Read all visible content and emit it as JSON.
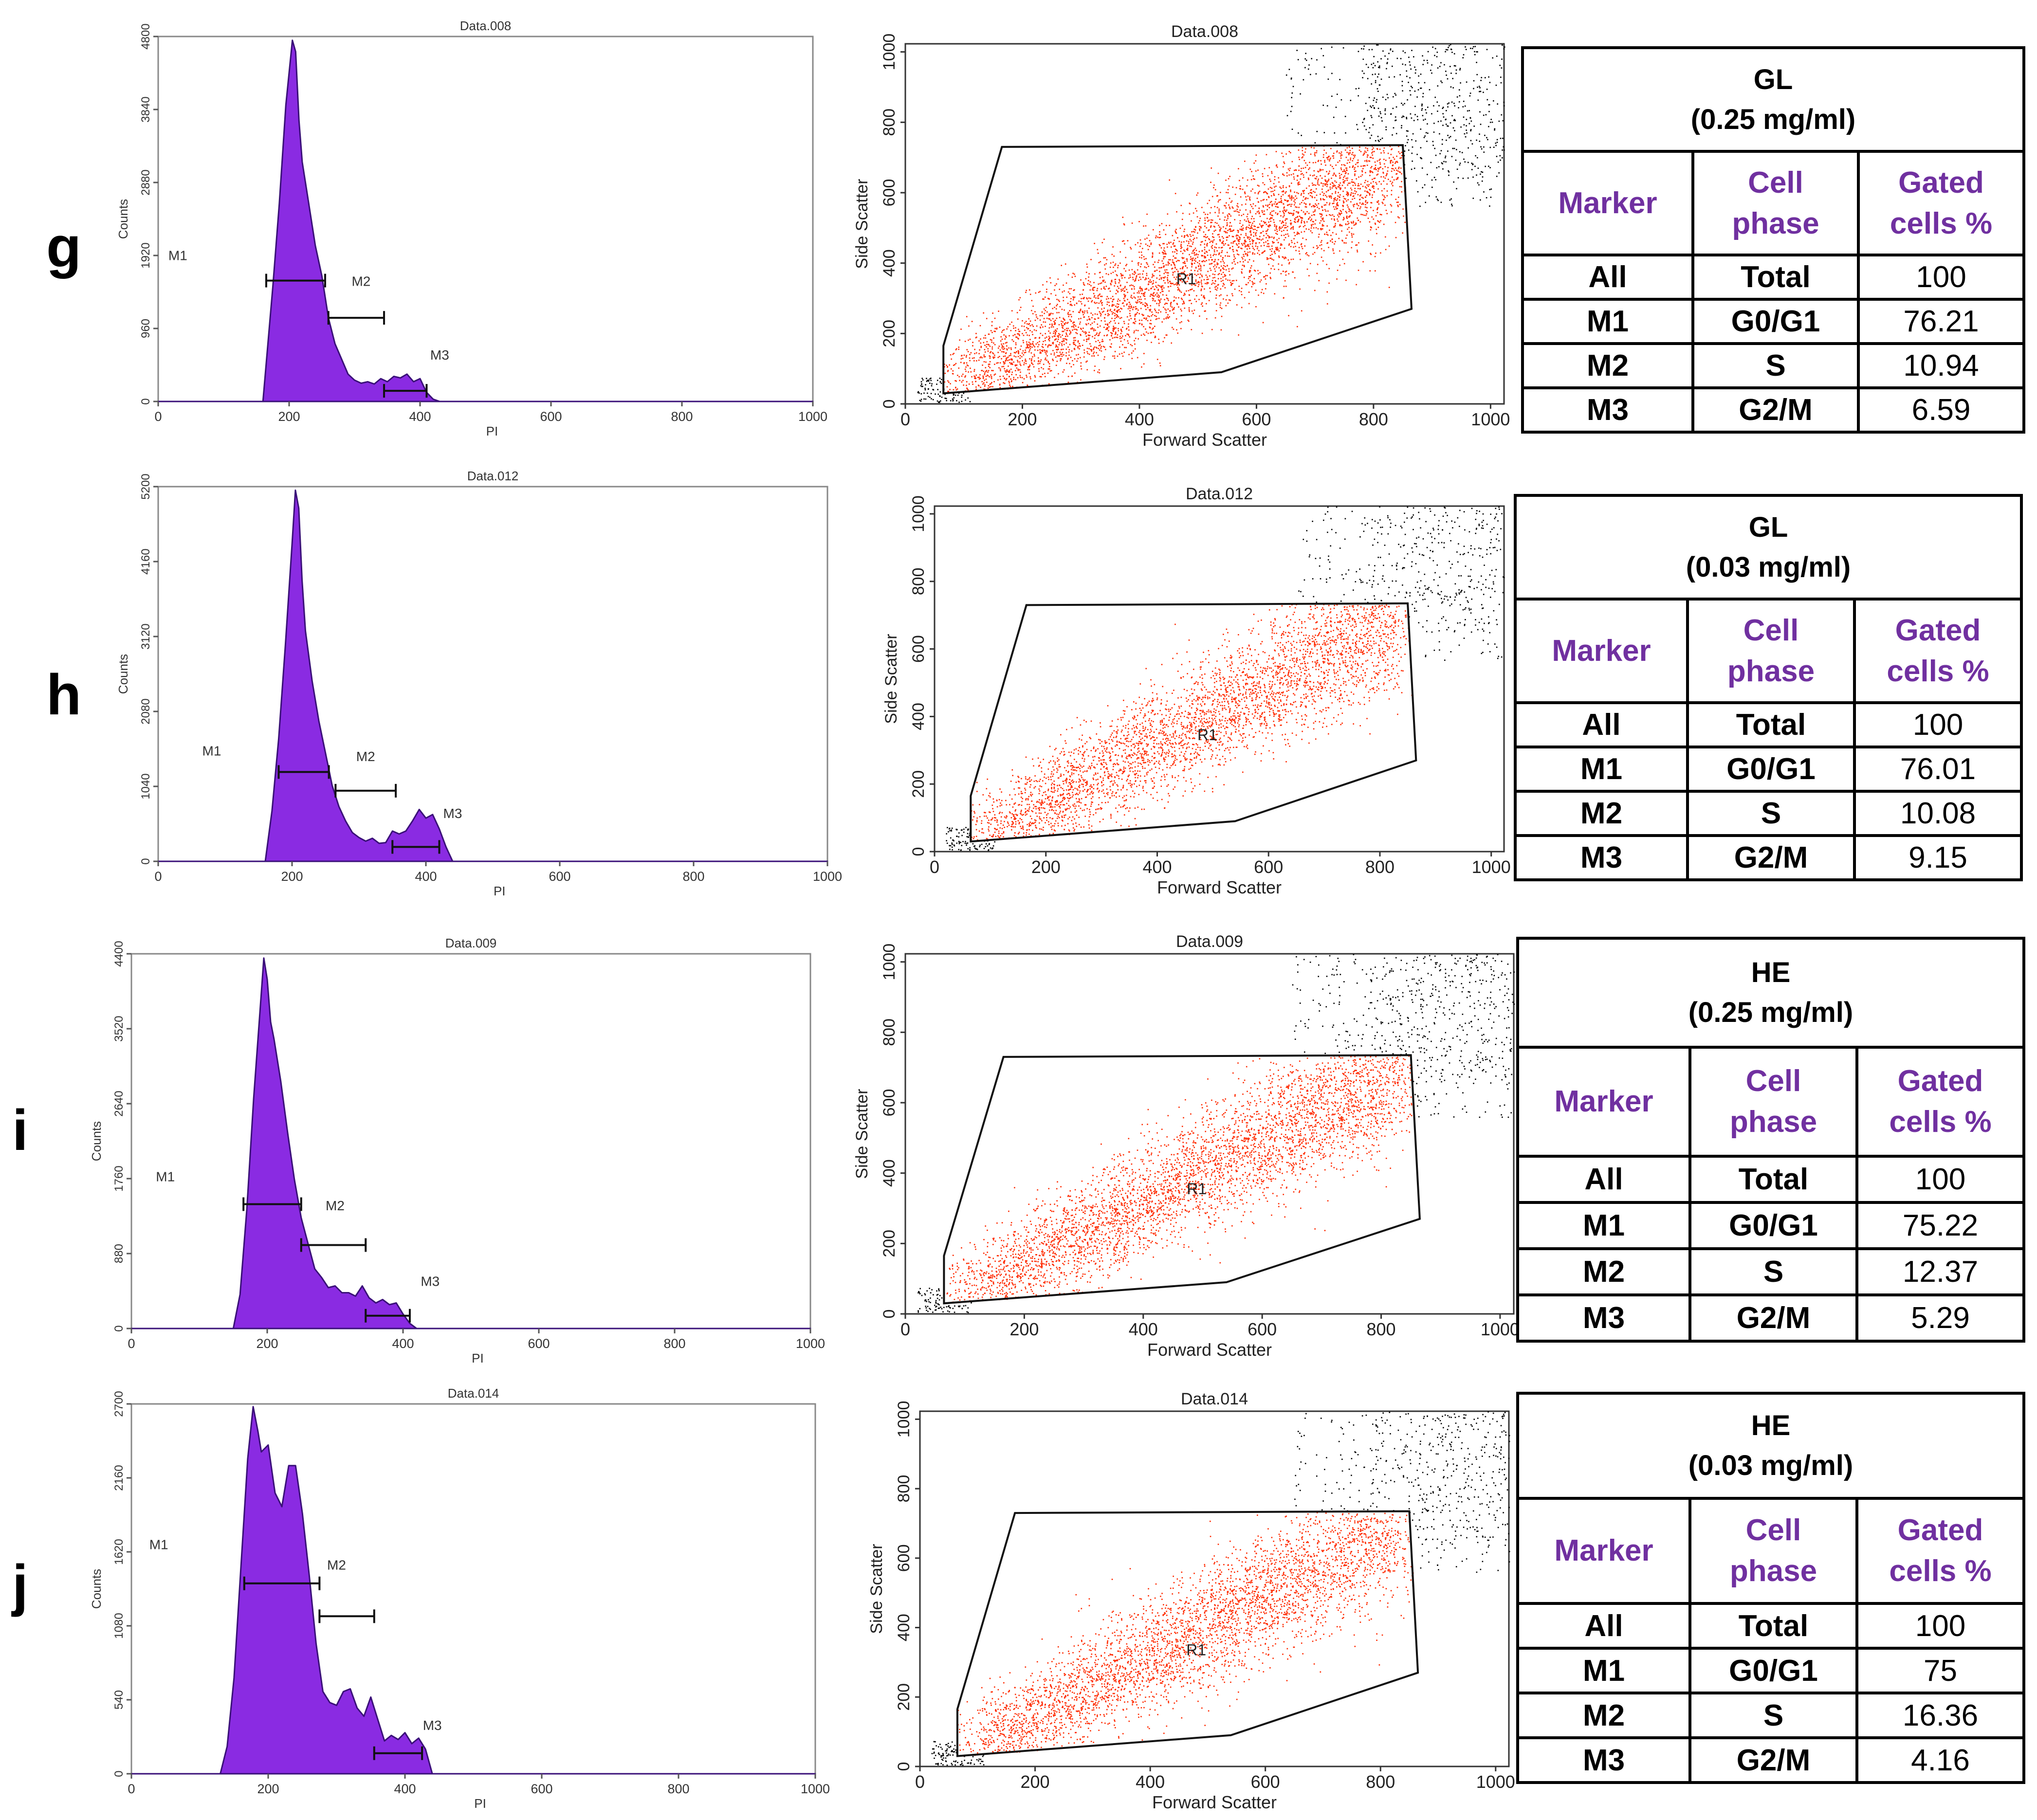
{
  "colors": {
    "histogram_fill": "#8a2be2",
    "histogram_edge": "#3a1078",
    "gated_points": "#ff2a00",
    "ungated_points": "#000000",
    "header_text": "#7030a0"
  },
  "chart_data": [
    {
      "panel": "g",
      "histogram": {
        "type": "area",
        "title": "Data.008",
        "xlabel": "PI",
        "ylabel": "Counts",
        "xlim": [
          0,
          1000
        ],
        "ylim": [
          0,
          4800
        ],
        "x_ticks": [
          "0",
          "200",
          "400",
          "600",
          "800",
          "1000"
        ],
        "y_ticks": [
          "0",
          "960",
          "1920",
          "2880",
          "3840",
          "4800"
        ],
        "x": [
          0,
          160,
          175,
          185,
          195,
          205,
          210,
          215,
          220,
          230,
          240,
          250,
          260,
          270,
          280,
          290,
          300,
          310,
          320,
          330,
          340,
          350,
          360,
          370,
          380,
          390,
          400,
          410,
          420,
          430,
          1000
        ],
        "y": [
          0,
          0,
          1500,
          2600,
          3900,
          4750,
          4600,
          3700,
          3150,
          2600,
          2050,
          1650,
          1100,
          760,
          560,
          360,
          280,
          240,
          260,
          230,
          300,
          260,
          330,
          310,
          360,
          260,
          300,
          120,
          30,
          0,
          0
        ],
        "markers": [
          {
            "name": "M1",
            "range": [
              165,
              255
            ],
            "level": 1590,
            "label_x": 30,
            "label_y": 1860
          },
          {
            "name": "M2",
            "range": [
              260,
              345
            ],
            "level": 1100,
            "label_x": 310,
            "label_y": 1520
          },
          {
            "name": "M3",
            "range": [
              345,
              410
            ],
            "level": 140,
            "label_x": 430,
            "label_y": 550
          }
        ]
      },
      "scatter": {
        "type": "scatter",
        "title": "Data.008",
        "xlabel": "Forward Scatter",
        "ylabel": "Side Scatter",
        "xlim": [
          0,
          1023
        ],
        "ylim": [
          0,
          1023
        ],
        "x_ticks": [
          "0",
          "200",
          "400",
          "600",
          "800",
          "1000"
        ],
        "y_ticks": [
          "0",
          "200",
          "400",
          "600",
          "800",
          "1000"
        ],
        "region": {
          "name": "R1",
          "label_at": [
            480,
            340
          ],
          "polygon": [
            [
              65,
              30
            ],
            [
              65,
              165
            ],
            [
              165,
              730
            ],
            [
              850,
              735
            ],
            [
              865,
              270
            ],
            [
              540,
              90
            ]
          ]
        },
        "cloud": {
          "n_gated": 4200,
          "n_ungated": 650,
          "seed": 11
        }
      },
      "table": {
        "title_line1": "GL",
        "title_line2": "(0.25 mg/ml)",
        "headers": {
          "marker": "Marker",
          "phase_l1": "Cell",
          "phase_l2": "phase",
          "gated_l1": "Gated",
          "gated_l2": "cells %"
        },
        "rows": [
          {
            "marker": "All",
            "phase": "Total",
            "gated": "100"
          },
          {
            "marker": "M1",
            "phase": "G0/G1",
            "gated": "76.21"
          },
          {
            "marker": "M2",
            "phase": "S",
            "gated": "10.94"
          },
          {
            "marker": "M3",
            "phase": "G2/M",
            "gated": "6.59"
          }
        ]
      }
    },
    {
      "panel": "h",
      "histogram": {
        "type": "area",
        "title": "Data.012",
        "xlabel": "PI",
        "ylabel": "Counts",
        "xlim": [
          0,
          1000
        ],
        "ylim": [
          0,
          5200
        ],
        "x_ticks": [
          "0",
          "200",
          "400",
          "600",
          "800",
          "1000"
        ],
        "y_ticks": [
          "0",
          "1040",
          "2080",
          "3120",
          "4160",
          "5200"
        ],
        "x": [
          0,
          160,
          170,
          180,
          190,
          200,
          205,
          210,
          215,
          220,
          230,
          240,
          250,
          260,
          270,
          280,
          290,
          300,
          310,
          320,
          330,
          340,
          350,
          360,
          370,
          380,
          390,
          400,
          410,
          420,
          430,
          440,
          1000
        ],
        "y": [
          0,
          0,
          700,
          1700,
          3000,
          4400,
          5150,
          4900,
          3900,
          3200,
          2500,
          1950,
          1500,
          1050,
          760,
          560,
          400,
          330,
          280,
          320,
          250,
          260,
          420,
          380,
          420,
          560,
          720,
          600,
          650,
          450,
          200,
          0,
          0
        ],
        "markers": [
          {
            "name": "M1",
            "range": [
              180,
              255
            ],
            "level": 1240,
            "label_x": 80,
            "label_y": 1470
          },
          {
            "name": "M2",
            "range": [
              265,
              355
            ],
            "level": 980,
            "label_x": 310,
            "label_y": 1390
          },
          {
            "name": "M3",
            "range": [
              350,
              420
            ],
            "level": 200,
            "label_x": 440,
            "label_y": 600
          }
        ]
      },
      "scatter": {
        "type": "scatter",
        "title": "Data.012",
        "xlabel": "Forward Scatter",
        "ylabel": "Side Scatter",
        "xlim": [
          0,
          1023
        ],
        "ylim": [
          0,
          1023
        ],
        "x_ticks": [
          "0",
          "200",
          "400",
          "600",
          "800",
          "1000"
        ],
        "y_ticks": [
          "0",
          "200",
          "400",
          "600",
          "800",
          "1000"
        ],
        "region": {
          "name": "R1",
          "label_at": [
            490,
            330
          ],
          "polygon": [
            [
              65,
              30
            ],
            [
              65,
              165
            ],
            [
              165,
              730
            ],
            [
              850,
              735
            ],
            [
              865,
              270
            ],
            [
              540,
              90
            ]
          ]
        },
        "cloud": {
          "n_gated": 3600,
          "n_ungated": 520,
          "seed": 23
        }
      },
      "table": {
        "title_line1": "GL",
        "title_line2": "(0.03 mg/ml)",
        "headers": {
          "marker": "Marker",
          "phase_l1": "Cell",
          "phase_l2": "phase",
          "gated_l1": "Gated",
          "gated_l2": "cells %"
        },
        "rows": [
          {
            "marker": "All",
            "phase": "Total",
            "gated": "100"
          },
          {
            "marker": "M1",
            "phase": "G0/G1",
            "gated": "76.01"
          },
          {
            "marker": "M2",
            "phase": "S",
            "gated": "10.08"
          },
          {
            "marker": "M3",
            "phase": "G2/M",
            "gated": "9.15"
          }
        ]
      }
    },
    {
      "panel": "i",
      "histogram": {
        "type": "area",
        "title": "Data.009",
        "xlabel": "PI",
        "ylabel": "Counts",
        "xlim": [
          0,
          1000
        ],
        "ylim": [
          0,
          4400
        ],
        "x_ticks": [
          "0",
          "200",
          "400",
          "600",
          "800",
          "1000"
        ],
        "y_ticks": [
          "0",
          "880",
          "1760",
          "2640",
          "3520",
          "4400"
        ],
        "x": [
          0,
          150,
          160,
          170,
          180,
          190,
          195,
          200,
          205,
          210,
          220,
          230,
          240,
          250,
          260,
          270,
          280,
          290,
          300,
          310,
          320,
          330,
          340,
          350,
          360,
          370,
          380,
          390,
          400,
          410,
          420,
          1000
        ],
        "y": [
          0,
          0,
          400,
          1400,
          2700,
          3800,
          4350,
          4100,
          3600,
          3400,
          2900,
          2300,
          1750,
          1300,
          1000,
          700,
          600,
          480,
          500,
          420,
          420,
          380,
          500,
          360,
          300,
          340,
          280,
          300,
          170,
          60,
          0,
          0
        ],
        "markers": [
          {
            "name": "M1",
            "range": [
              165,
              250
            ],
            "level": 1460,
            "label_x": 50,
            "label_y": 1730
          },
          {
            "name": "M2",
            "range": [
              250,
              345
            ],
            "level": 980,
            "label_x": 300,
            "label_y": 1390
          },
          {
            "name": "M3",
            "range": [
              345,
              410
            ],
            "level": 150,
            "label_x": 440,
            "label_y": 500
          }
        ]
      },
      "scatter": {
        "type": "scatter",
        "title": "Data.009",
        "xlabel": "Forward Scatter",
        "ylabel": "Side Scatter",
        "xlim": [
          0,
          1023
        ],
        "ylim": [
          0,
          1023
        ],
        "x_ticks": [
          "0",
          "200",
          "400",
          "600",
          "800",
          "1000"
        ],
        "y_ticks": [
          "0",
          "200",
          "400",
          "600",
          "800",
          "1000"
        ],
        "region": {
          "name": "R1",
          "label_at": [
            490,
            340
          ],
          "polygon": [
            [
              65,
              30
            ],
            [
              65,
              165
            ],
            [
              165,
              730
            ],
            [
              850,
              735
            ],
            [
              865,
              270
            ],
            [
              540,
              90
            ]
          ]
        },
        "cloud": {
          "n_gated": 4000,
          "n_ungated": 650,
          "seed": 37
        }
      },
      "table": {
        "title_line1": "HE",
        "title_line2": "(0.25 mg/ml)",
        "headers": {
          "marker": "Marker",
          "phase_l1": "Cell",
          "phase_l2": "phase",
          "gated_l1": "Gated",
          "gated_l2": "cells %"
        },
        "rows": [
          {
            "marker": "All",
            "phase": "Total",
            "gated": "100"
          },
          {
            "marker": "M1",
            "phase": "G0/G1",
            "gated": "75.22"
          },
          {
            "marker": "M2",
            "phase": "S",
            "gated": "12.37"
          },
          {
            "marker": "M3",
            "phase": "G2/M",
            "gated": "5.29"
          }
        ]
      }
    },
    {
      "panel": "j",
      "histogram": {
        "type": "area",
        "title": "Data.014",
        "xlabel": "PI",
        "ylabel": "Counts",
        "xlim": [
          0,
          1000
        ],
        "ylim": [
          0,
          2700
        ],
        "x_ticks": [
          "0",
          "200",
          "400",
          "600",
          "800",
          "1000"
        ],
        "y_ticks": [
          "0",
          "540",
          "1080",
          "1620",
          "2160",
          "2700"
        ],
        "x": [
          0,
          130,
          140,
          150,
          160,
          170,
          178,
          185,
          190,
          200,
          210,
          220,
          230,
          240,
          250,
          260,
          270,
          280,
          290,
          300,
          310,
          320,
          330,
          340,
          350,
          360,
          370,
          380,
          390,
          400,
          410,
          420,
          430,
          440,
          1000
        ],
        "y": [
          0,
          0,
          200,
          700,
          1500,
          2300,
          2680,
          2500,
          2350,
          2400,
          2050,
          1950,
          2250,
          2250,
          1900,
          1450,
          950,
          600,
          520,
          500,
          600,
          620,
          480,
          420,
          560,
          400,
          240,
          280,
          250,
          300,
          220,
          260,
          180,
          0,
          0
        ],
        "markers": [
          {
            "name": "M1",
            "range": [
              165,
              275
            ],
            "level": 1390,
            "label_x": 40,
            "label_y": 1640
          },
          {
            "name": "M2",
            "range": [
              275,
              355
            ],
            "level": 1150,
            "label_x": 300,
            "label_y": 1490
          },
          {
            "name": "M3",
            "range": [
              355,
              425
            ],
            "level": 150,
            "label_x": 440,
            "label_y": 320
          }
        ]
      },
      "scatter": {
        "type": "scatter",
        "title": "Data.014",
        "xlabel": "Forward Scatter",
        "ylabel": "Side Scatter",
        "xlim": [
          0,
          1023
        ],
        "ylim": [
          0,
          1023
        ],
        "x_ticks": [
          "0",
          "200",
          "400",
          "600",
          "800",
          "1000"
        ],
        "y_ticks": [
          "0",
          "200",
          "400",
          "600",
          "800",
          "1000"
        ],
        "region": {
          "name": "R1",
          "label_at": [
            480,
            320
          ],
          "polygon": [
            [
              65,
              30
            ],
            [
              65,
              165
            ],
            [
              165,
              730
            ],
            [
              850,
              735
            ],
            [
              865,
              270
            ],
            [
              540,
              90
            ]
          ]
        },
        "cloud": {
          "n_gated": 3800,
          "n_ungated": 600,
          "seed": 53
        }
      },
      "table": {
        "title_line1": "HE",
        "title_line2": "(0.03 mg/ml)",
        "headers": {
          "marker": "Marker",
          "phase_l1": "Cell",
          "phase_l2": "phase",
          "gated_l1": "Gated",
          "gated_l2": "cells %"
        },
        "rows": [
          {
            "marker": "All",
            "phase": "Total",
            "gated": "100"
          },
          {
            "marker": "M1",
            "phase": "G0/G1",
            "gated": "75"
          },
          {
            "marker": "M2",
            "phase": "S",
            "gated": "16.36"
          },
          {
            "marker": "M3",
            "phase": "G2/M",
            "gated": "4.16"
          }
        ]
      }
    }
  ]
}
